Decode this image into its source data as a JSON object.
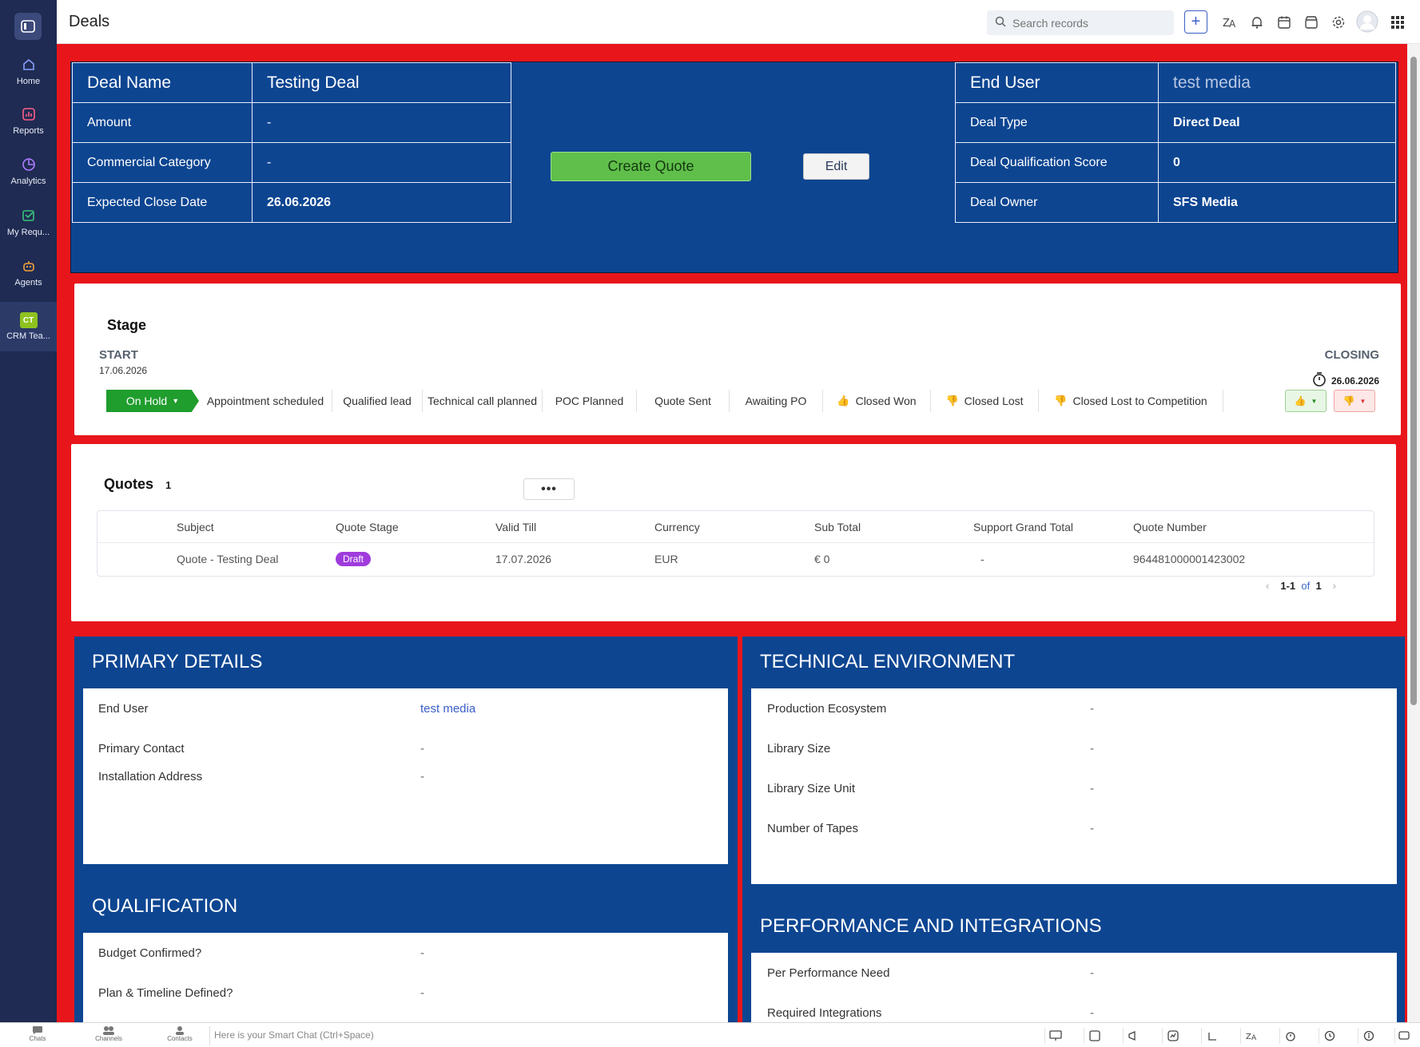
{
  "rail": {
    "items": [
      {
        "label": "Home",
        "icon": "home-icon"
      },
      {
        "label": "Reports",
        "icon": "reports-icon"
      },
      {
        "label": "Analytics",
        "icon": "analytics-icon"
      },
      {
        "label": "My Requ...",
        "icon": "requests-icon"
      },
      {
        "label": "Agents",
        "icon": "agents-icon"
      },
      {
        "label": "CRM Tea...",
        "icon": "crm-team-badge",
        "badge": "CT"
      }
    ]
  },
  "header": {
    "title": "Deals",
    "search_placeholder": "Search records",
    "plus": "+"
  },
  "hero": {
    "left": [
      {
        "label": "Deal Name",
        "value": "Testing Deal"
      },
      {
        "label": "Amount",
        "value": "-"
      },
      {
        "label": "Commercial Category",
        "value": "-"
      },
      {
        "label": "Expected Close Date",
        "value": "26.06.2026"
      }
    ],
    "right": [
      {
        "label": "End User",
        "value": "test media"
      },
      {
        "label": "Deal Type",
        "value": "Direct Deal"
      },
      {
        "label": "Deal Qualification Score",
        "value": "0"
      },
      {
        "label": "Deal Owner",
        "value": "SFS Media"
      }
    ],
    "create_quote": "Create Quote",
    "edit": "Edit"
  },
  "stage": {
    "title": "Stage",
    "start_label": "START",
    "start_date": "17.06.2026",
    "closing_label": "CLOSING",
    "closing_date": "26.06.2026",
    "current": "On Hold",
    "steps": [
      "Appointment scheduled",
      "Qualified lead",
      "Technical call planned",
      "POC Planned",
      "Quote Sent",
      "Awaiting PO",
      "Closed Won",
      "Closed Lost",
      "Closed Lost to Competition"
    ]
  },
  "quotes": {
    "title": "Quotes",
    "count": "1",
    "more": "•••",
    "columns": [
      "Subject",
      "Quote Stage",
      "Valid Till",
      "Currency",
      "Sub Total",
      "Support Grand Total",
      "Quote Number"
    ],
    "rows": [
      {
        "subject": "Quote - Testing Deal",
        "stage": "Draft",
        "valid_till": "17.07.2026",
        "currency": "EUR",
        "sub_total": "€ 0",
        "support_grand_total": "-",
        "quote_number": "964481000001423002"
      }
    ],
    "pager": {
      "range": "1-1",
      "of": "of",
      "total": "1"
    }
  },
  "primary_details": {
    "title": "PRIMARY DETAILS",
    "fields": [
      {
        "label": "End User",
        "value": "test media"
      },
      {
        "label": "Primary Contact",
        "value": "-"
      },
      {
        "label": "Installation Address",
        "value": "-"
      }
    ]
  },
  "qualification": {
    "title": "QUALIFICATION",
    "fields": [
      {
        "label": "Budget Confirmed?",
        "value": "-"
      },
      {
        "label": "Plan & Timeline Defined?",
        "value": "-"
      }
    ]
  },
  "technical_environment": {
    "title": "TECHNICAL ENVIRONMENT",
    "fields": [
      {
        "label": "Production Ecosystem",
        "value": "-"
      },
      {
        "label": "Library Size",
        "value": "-"
      },
      {
        "label": "Library Size Unit",
        "value": "-"
      },
      {
        "label": "Number of Tapes",
        "value": "-"
      }
    ]
  },
  "performance": {
    "title": "PERFORMANCE AND INTEGRATIONS",
    "fields": [
      {
        "label": "Per Performance Need",
        "value": "-"
      },
      {
        "label": "Required Integrations",
        "value": "-"
      }
    ]
  },
  "chatbar": {
    "items": [
      "Chats",
      "Channels",
      "Contacts"
    ],
    "smart_chat": "Here is your Smart Chat (Ctrl+Space)"
  },
  "colors": {
    "background_red": "#e8161b",
    "panel_blue": "#0d4591",
    "rail": "#1f2b52",
    "on_hold_green": "#1f9d2d",
    "create_quote_green": "#5fbf4a",
    "draft_purple": "#9f3bdc"
  }
}
